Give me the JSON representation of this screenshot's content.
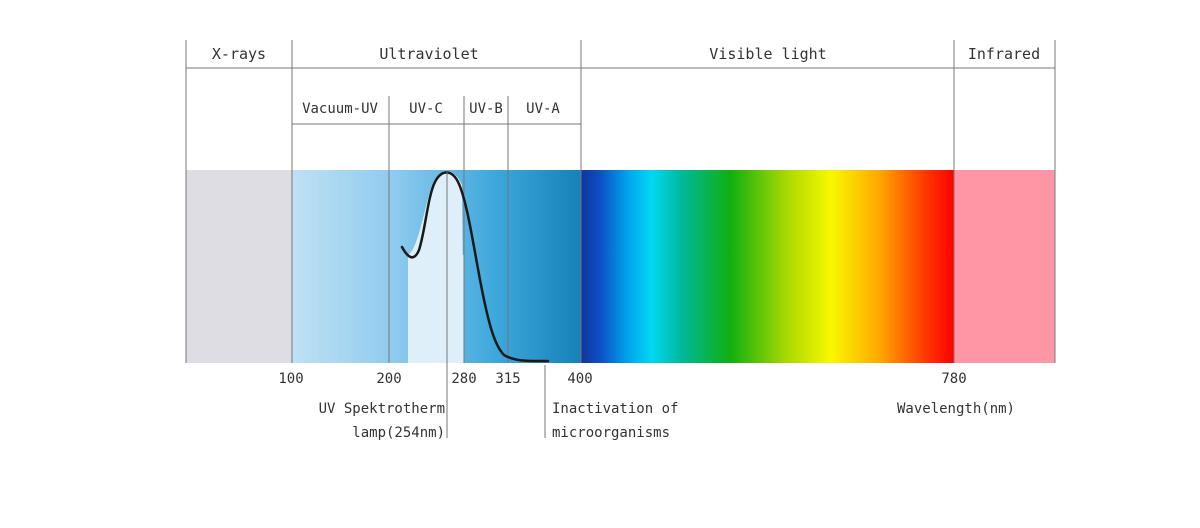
{
  "bands": {
    "xrays": "X-rays",
    "ultraviolet": "Ultraviolet",
    "visible": "Visible light",
    "infrared": "Infrared"
  },
  "uv_subbands": {
    "vacuum_uv": "Vacuum-UV",
    "uvc": "UV-C",
    "uvb": "UV-B",
    "uva": "UV-A"
  },
  "ticks": {
    "t100": "100",
    "t200": "200",
    "t280": "280",
    "t315": "315",
    "t400": "400",
    "t780": "780"
  },
  "annotations": {
    "lamp_line1": "UV Spektrotherm",
    "lamp_line2": "lamp(254nm)",
    "inact_line1": "Inactivation of",
    "inact_line2": "microorganisms",
    "axis_unit": "Wavelength(nm)"
  },
  "colors": {
    "xrays": "#dedde3",
    "infrared": "#ff96a5",
    "uv_light": "#b6dcf2",
    "uv_dark": "#1a87bf",
    "curve": "#1a1a1a"
  }
}
